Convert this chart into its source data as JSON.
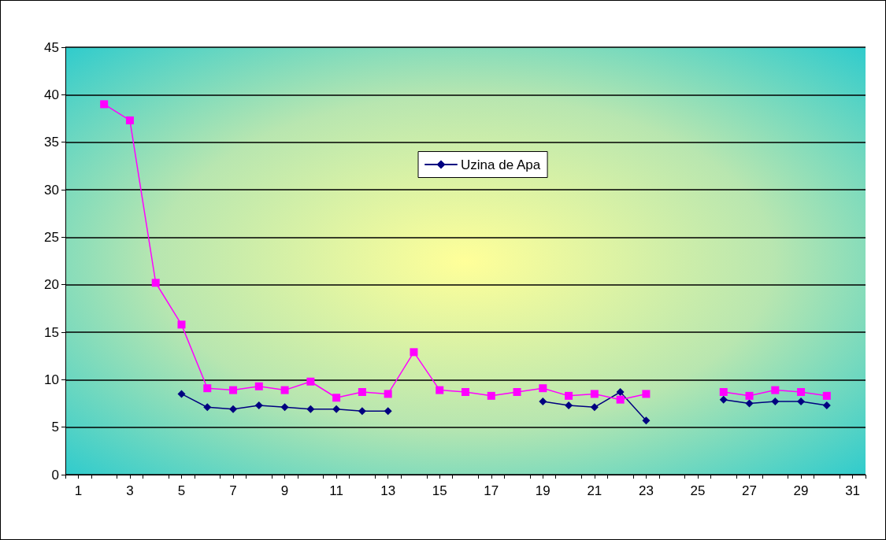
{
  "chart_data": {
    "type": "line",
    "x": [
      2,
      3,
      4,
      5,
      6,
      7,
      8,
      9,
      10,
      11,
      12,
      13,
      14,
      15,
      16,
      17,
      18,
      19,
      20,
      21,
      22,
      23,
      24,
      25,
      26,
      27,
      28,
      29,
      30
    ],
    "series": [
      {
        "name": "Uzina de Apa",
        "color": "#000080",
        "marker": "diamond",
        "values": [
          null,
          null,
          null,
          8.5,
          7.1,
          6.9,
          7.3,
          7.1,
          6.9,
          6.9,
          6.7,
          6.7,
          null,
          null,
          null,
          null,
          null,
          7.7,
          7.3,
          7.1,
          8.7,
          5.7,
          null,
          null,
          7.9,
          7.5,
          7.7,
          7.7,
          7.3
        ]
      },
      {
        "color": "#ff00ff",
        "marker": "square",
        "values": [
          39,
          37.3,
          20.2,
          15.8,
          9.1,
          8.9,
          9.3,
          8.9,
          9.8,
          8.1,
          8.7,
          8.5,
          12.9,
          8.9,
          8.7,
          8.3,
          8.7,
          9.1,
          8.3,
          8.5,
          7.9,
          8.5,
          null,
          null,
          8.7,
          8.3,
          8.9,
          8.7,
          8.3
        ]
      }
    ],
    "xlim": [
      0.5,
      31.5
    ],
    "xticks": [
      {
        "value": 0.5,
        "label": null
      },
      1,
      {
        "value": 1.5,
        "label": null
      },
      {
        "value": 2.5,
        "label": null
      },
      3,
      {
        "value": 3.5,
        "label": null
      },
      {
        "value": 4.5,
        "label": null
      },
      5,
      {
        "value": 5.5,
        "label": null
      },
      {
        "value": 6.5,
        "label": null
      },
      7,
      {
        "value": 7.5,
        "label": null
      },
      {
        "value": 8.5,
        "label": null
      },
      9,
      {
        "value": 9.5,
        "label": null
      },
      {
        "value": 10.5,
        "label": null
      },
      11,
      {
        "value": 11.5,
        "label": null
      },
      {
        "value": 12.5,
        "label": null
      },
      13,
      {
        "value": 13.5,
        "label": null
      },
      {
        "value": 14.5,
        "label": null
      },
      15,
      {
        "value": 15.5,
        "label": null
      },
      {
        "value": 16.5,
        "label": null
      },
      17,
      {
        "value": 17.5,
        "label": null
      },
      {
        "value": 18.5,
        "label": null
      },
      19,
      {
        "value": 19.5,
        "label": null
      },
      {
        "value": 20.5,
        "label": null
      },
      21,
      {
        "value": 21.5,
        "label": null
      },
      {
        "value": 22.5,
        "label": null
      },
      23,
      {
        "value": 23.5,
        "label": null
      },
      {
        "value": 24.5,
        "label": null
      },
      25,
      {
        "value": 25.5,
        "label": null
      },
      {
        "value": 26.5,
        "label": null
      },
      27,
      {
        "value": 27.5,
        "label": null
      },
      {
        "value": 28.5,
        "label": null
      },
      29,
      {
        "value": 29.5,
        "label": null
      },
      {
        "value": 30.5,
        "label": null
      },
      31,
      {
        "value": 31.5,
        "label": null
      }
    ],
    "ylim": [
      0,
      45
    ],
    "yticks": [
      0,
      5,
      10,
      15,
      20,
      25,
      30,
      35,
      40,
      45
    ],
    "grid": "y",
    "legend": "top",
    "line_style": "solid"
  }
}
